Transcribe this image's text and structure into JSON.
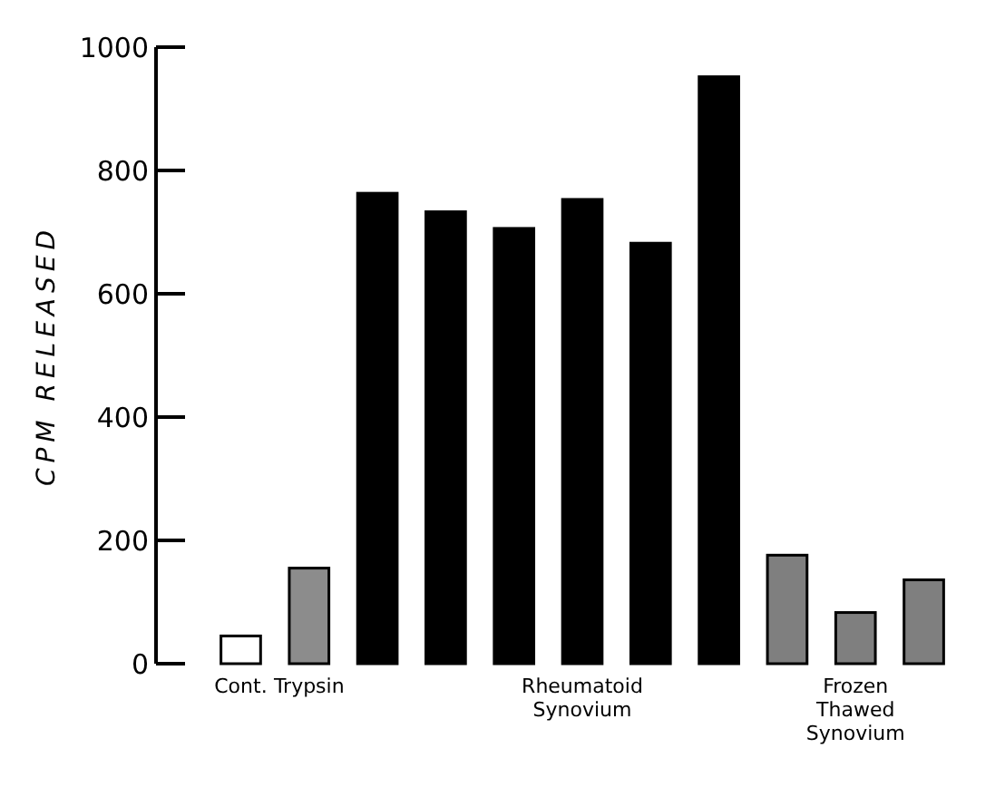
{
  "chart_data": {
    "type": "bar",
    "ylabel": "CPM RELEASED",
    "categories": [
      "Cont.",
      "Trypsin",
      null,
      null,
      null,
      "Rheumatoid\nSynovium",
      null,
      null,
      null,
      "Frozen\nThawed\nSynovium",
      null
    ],
    "values": [
      45,
      155,
      763,
      733,
      706,
      753,
      682,
      952,
      176,
      83,
      136
    ],
    "colors": [
      "#ffffff",
      "#8c8c8c",
      "#000000",
      "#000000",
      "#000000",
      "#000000",
      "#000000",
      "#000000",
      "#7f7f7f",
      "#7f7f7f",
      "#7f7f7f"
    ],
    "ylim": [
      0,
      1000
    ],
    "yticks": [
      0,
      200,
      400,
      600,
      800,
      1000
    ],
    "grid": false
  }
}
